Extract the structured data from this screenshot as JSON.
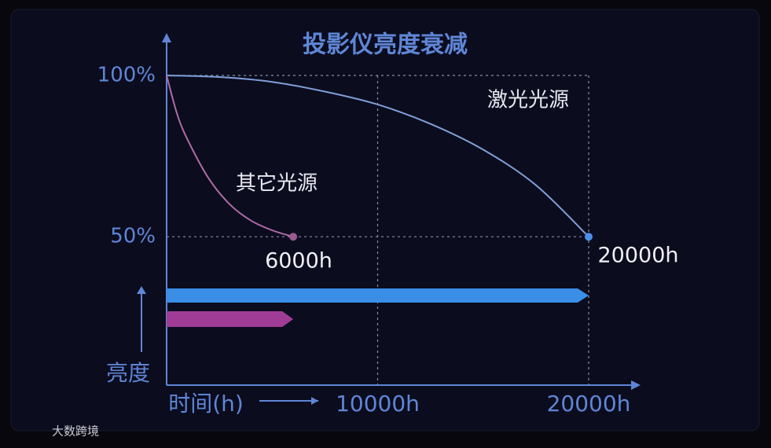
{
  "chart_data": {
    "type": "line",
    "title": "投影仪亮度衰减",
    "x_label": "时间(h)",
    "y_label": "亮度",
    "xlim": [
      0,
      20000
    ],
    "ylim": [
      4,
      100
    ],
    "xticks": [
      {
        "value": 10000,
        "label": "10000h"
      },
      {
        "value": 20000,
        "label": "20000h"
      }
    ],
    "yticks": [
      {
        "value": 50,
        "label": "50%"
      },
      {
        "value": 100,
        "label": "100%"
      }
    ],
    "grid": true,
    "series": [
      {
        "name": "激光光源",
        "color": "#7f9fd8",
        "marker_color": "#4a90e8",
        "x": [
          0,
          2500,
          5000,
          7500,
          10000,
          12500,
          15000,
          17500,
          20000
        ],
        "values": [
          100,
          99.5,
          98,
          95,
          91,
          85,
          77,
          66,
          50
        ],
        "end_label": "20000h",
        "lifespan_color": "#3a8ee6"
      },
      {
        "name": "其它光源",
        "color": "#b06aa8",
        "marker_color": "#9a5a8e",
        "x": [
          0,
          500,
          1000,
          2000,
          3000,
          4000,
          5000,
          6000
        ],
        "values": [
          100,
          88,
          80,
          68,
          60,
          55,
          52,
          50
        ],
        "end_label": "6000h",
        "lifespan_color": "#a03c96"
      }
    ],
    "watermark": "大数跨境"
  }
}
